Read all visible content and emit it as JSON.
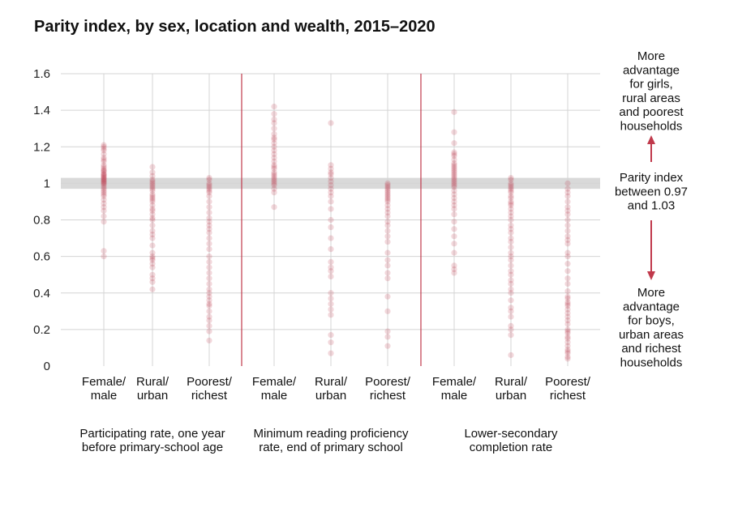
{
  "chart_data": {
    "type": "scatter",
    "title": "Parity index, by sex, location and wealth, 2015–2020",
    "ylim": [
      0,
      1.6
    ],
    "yticks": [
      {
        "value": 0,
        "label": "0"
      },
      {
        "value": 0.2,
        "label": "0.2"
      },
      {
        "value": 0.4,
        "label": "0.4"
      },
      {
        "value": 0.6,
        "label": "0.6"
      },
      {
        "value": 0.8,
        "label": "0.8"
      },
      {
        "value": 1.0,
        "label": "1"
      },
      {
        "value": 1.2,
        "label": "1.2"
      },
      {
        "value": 1.4,
        "label": "1.4"
      },
      {
        "value": 1.6,
        "label": "1.6"
      }
    ],
    "parity_band": [
      0.97,
      1.03
    ],
    "series_color": "#c0394b",
    "band_color": "#d9d9d9",
    "divider_color": "#c0394b",
    "groups": [
      {
        "label_lines": [
          "Participating rate, one year",
          "before primary-school age"
        ],
        "categories": [
          {
            "label_lines": [
              "Female/",
              "male"
            ],
            "values": [
              1.21,
              1.2,
              1.19,
              1.18,
              1.16,
              1.14,
              1.13,
              1.12,
              1.1,
              1.09,
              1.08,
              1.07,
              1.07,
              1.06,
              1.05,
              1.05,
              1.04,
              1.04,
              1.03,
              1.03,
              1.02,
              1.02,
              1.01,
              1.01,
              1.0,
              1.0,
              0.99,
              0.98,
              0.97,
              0.96,
              0.95,
              0.94,
              0.93,
              0.91,
              0.89,
              0.87,
              0.85,
              0.82,
              0.79,
              0.63,
              0.6
            ]
          },
          {
            "label_lines": [
              "Rural/",
              "urban"
            ],
            "values": [
              1.09,
              1.06,
              1.04,
              1.02,
              1.01,
              1.0,
              0.99,
              0.98,
              0.97,
              0.96,
              0.94,
              0.93,
              0.92,
              0.91,
              0.9,
              0.88,
              0.86,
              0.85,
              0.83,
              0.81,
              0.8,
              0.77,
              0.74,
              0.72,
              0.7,
              0.66,
              0.62,
              0.6,
              0.59,
              0.58,
              0.56,
              0.54,
              0.5,
              0.48,
              0.46,
              0.42
            ]
          },
          {
            "label_lines": [
              "Poorest/",
              "richest"
            ],
            "values": [
              1.03,
              1.02,
              1.0,
              0.99,
              0.98,
              0.97,
              0.96,
              0.95,
              0.93,
              0.9,
              0.87,
              0.84,
              0.81,
              0.79,
              0.77,
              0.75,
              0.73,
              0.7,
              0.67,
              0.64,
              0.6,
              0.57,
              0.54,
              0.51,
              0.48,
              0.45,
              0.42,
              0.4,
              0.38,
              0.36,
              0.34,
              0.33,
              0.3,
              0.27,
              0.25,
              0.22,
              0.19,
              0.14
            ]
          }
        ]
      },
      {
        "label_lines": [
          "Minimum reading proficiency",
          "rate, end of primary school"
        ],
        "categories": [
          {
            "label_lines": [
              "Female/",
              "male"
            ],
            "values": [
              1.42,
              1.38,
              1.35,
              1.33,
              1.3,
              1.27,
              1.25,
              1.24,
              1.22,
              1.2,
              1.18,
              1.16,
              1.14,
              1.12,
              1.1,
              1.09,
              1.08,
              1.06,
              1.05,
              1.04,
              1.03,
              1.02,
              1.01,
              1.0,
              0.99,
              0.97,
              0.95,
              0.87
            ]
          },
          {
            "label_lines": [
              "Rural/",
              "urban"
            ],
            "values": [
              1.33,
              1.1,
              1.08,
              1.06,
              1.05,
              1.03,
              1.01,
              0.99,
              0.97,
              0.95,
              0.93,
              0.9,
              0.86,
              0.8,
              0.76,
              0.7,
              0.64,
              0.57,
              0.54,
              0.52,
              0.49,
              0.4,
              0.37,
              0.34,
              0.31,
              0.28,
              0.17,
              0.13,
              0.07
            ]
          },
          {
            "label_lines": [
              "Poorest/",
              "richest"
            ],
            "values": [
              1.0,
              0.99,
              0.98,
              0.97,
              0.96,
              0.95,
              0.94,
              0.93,
              0.92,
              0.91,
              0.9,
              0.88,
              0.86,
              0.84,
              0.82,
              0.79,
              0.77,
              0.74,
              0.71,
              0.68,
              0.62,
              0.58,
              0.55,
              0.51,
              0.48,
              0.38,
              0.3,
              0.19,
              0.16,
              0.11
            ]
          }
        ]
      },
      {
        "label_lines": [
          "Lower-secondary",
          "completion rate"
        ],
        "categories": [
          {
            "label_lines": [
              "Female/",
              "male"
            ],
            "values": [
              1.39,
              1.28,
              1.22,
              1.17,
              1.16,
              1.15,
              1.13,
              1.11,
              1.1,
              1.09,
              1.08,
              1.07,
              1.06,
              1.05,
              1.04,
              1.03,
              1.02,
              1.01,
              1.0,
              0.99,
              0.98,
              0.96,
              0.94,
              0.92,
              0.9,
              0.88,
              0.86,
              0.83,
              0.79,
              0.75,
              0.71,
              0.67,
              0.62,
              0.55,
              0.53,
              0.51
            ]
          },
          {
            "label_lines": [
              "Rural/",
              "urban"
            ],
            "values": [
              1.03,
              1.02,
              1.0,
              0.99,
              0.98,
              0.97,
              0.96,
              0.95,
              0.93,
              0.92,
              0.9,
              0.89,
              0.88,
              0.86,
              0.84,
              0.82,
              0.8,
              0.77,
              0.75,
              0.73,
              0.7,
              0.68,
              0.65,
              0.62,
              0.6,
              0.58,
              0.55,
              0.52,
              0.5,
              0.47,
              0.45,
              0.42,
              0.4,
              0.36,
              0.32,
              0.3,
              0.27,
              0.22,
              0.2,
              0.17,
              0.06
            ]
          },
          {
            "label_lines": [
              "Poorest/",
              "richest"
            ],
            "values": [
              1.0,
              0.97,
              0.95,
              0.93,
              0.9,
              0.87,
              0.85,
              0.83,
              0.8,
              0.77,
              0.74,
              0.71,
              0.69,
              0.67,
              0.62,
              0.6,
              0.56,
              0.52,
              0.48,
              0.45,
              0.41,
              0.38,
              0.37,
              0.35,
              0.34,
              0.33,
              0.31,
              0.29,
              0.27,
              0.25,
              0.23,
              0.2,
              0.19,
              0.18,
              0.16,
              0.15,
              0.13,
              0.11,
              0.09,
              0.08,
              0.07,
              0.05,
              0.04
            ]
          }
        ]
      }
    ],
    "annotations": {
      "top_lines": [
        "More",
        "advantage",
        "for girls,",
        "rural areas",
        "and poorest",
        "households"
      ],
      "middle_lines": [
        "Parity index",
        "between 0.97",
        "and 1.03"
      ],
      "bottom_lines": [
        "More",
        "advantage",
        "for boys,",
        "urban areas",
        "and richest",
        "households"
      ]
    }
  }
}
